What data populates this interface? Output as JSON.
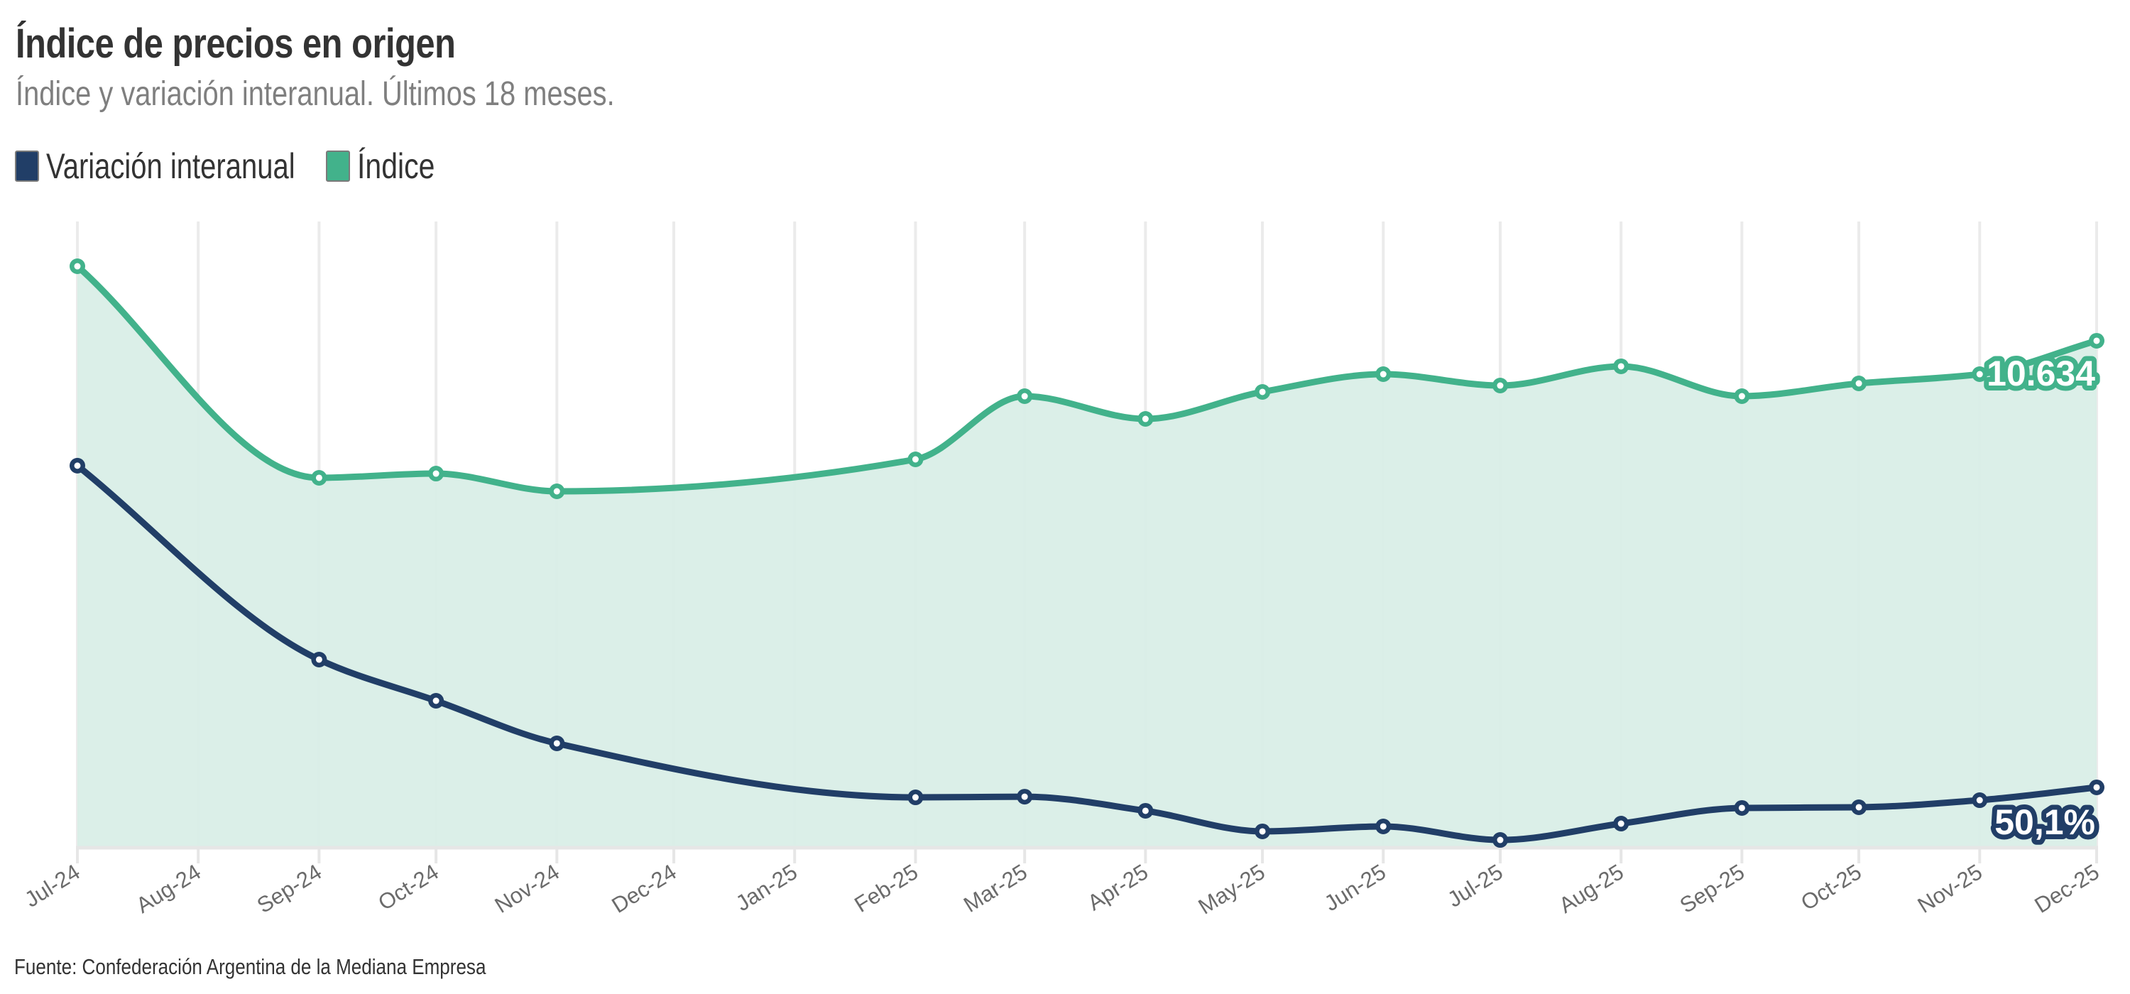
{
  "header": {
    "title": "Índice de precios en origen",
    "subtitle": "Índice y variación interanual. Últimos 18 meses."
  },
  "legend": {
    "items": [
      {
        "label": "Variación interanual",
        "color": "#213e67"
      },
      {
        "label": "Índice",
        "color": "#42b28b"
      }
    ]
  },
  "footer": {
    "source": "Fuente: Confederación Argentina de la Mediana Empresa"
  },
  "colors": {
    "indice_line": "#42b28b",
    "indice_fill": "#d9eee7",
    "variacion_line": "#213e67",
    "grid": "#ebebeb",
    "axis": "#e6e6e6"
  },
  "chart_data": {
    "type": "line",
    "title": "Índice de precios en origen",
    "subtitle": "Índice y variación interanual. Últimos 18 meses.",
    "xlabel": "",
    "ylabel": "",
    "x_axis_type": "date",
    "categories": [
      "Jul-24",
      "Aug-24",
      "Sep-24",
      "Oct-24",
      "Nov-24",
      "Dec-24",
      "Jan-25",
      "Feb-25",
      "Mar-25",
      "Apr-25",
      "May-25",
      "Jun-25",
      "Jul-25",
      "Aug-25",
      "Sep-25",
      "Oct-25",
      "Nov-25",
      "Dec-25"
    ],
    "month_days": [
      31,
      31,
      30,
      31,
      30,
      31,
      31,
      28,
      31,
      30,
      31,
      30,
      31,
      31,
      30,
      31,
      30
    ],
    "grid": {
      "vertical": true,
      "horizontal": false
    },
    "y_axis_labels_visible": false,
    "legend_position": "top-left",
    "series": [
      {
        "name": "Variación interanual",
        "type": "line",
        "color": "#213e67",
        "axis": "right-hidden",
        "ylim": [
          0,
          531
        ],
        "values": [
          323.5,
          null,
          158.7,
          123.7,
          87.5,
          null,
          null,
          41.6,
          42.2,
          30.2,
          12.7,
          16.9,
          5.4,
          19.3,
          32.6,
          33.2,
          39.2,
          50.1
        ],
        "end_label": "50,1%"
      },
      {
        "name": "Índice",
        "type": "area",
        "color": "#42b28b",
        "axis": "left-hidden",
        "ylim": [
          0,
          13142
        ],
        "values": [
          12201,
          null,
          7751,
          7840,
          7467,
          null,
          null,
          8139,
          9468,
          8990,
          9558,
          9931,
          9692,
          10096,
          9468,
          9737,
          9931,
          10634
        ],
        "end_label": "10.634"
      }
    ],
    "annotations": [
      "10.634",
      "50,1%"
    ]
  }
}
